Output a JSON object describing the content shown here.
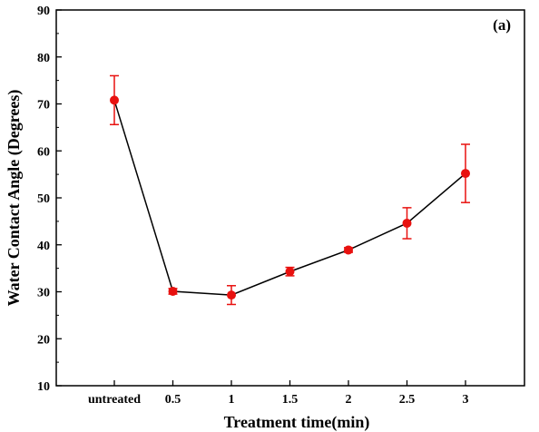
{
  "chart_data": {
    "type": "scatter",
    "panel_label": "(a)",
    "xlabel": "Treatment time(min)",
    "ylabel": "Water Contact Angle (Degrees)",
    "ylim": [
      10,
      90
    ],
    "yticks": [
      10,
      20,
      30,
      40,
      50,
      60,
      70,
      80,
      90
    ],
    "categories": [
      "untreated",
      "0.5",
      "1",
      "1.5",
      "2",
      "2.5",
      "3"
    ],
    "series": [
      {
        "values": [
          70.8,
          30.1,
          29.3,
          34.3,
          38.9,
          44.6,
          55.2
        ],
        "error": [
          5.2,
          0.6,
          2.0,
          0.9,
          0.5,
          3.3,
          6.2
        ],
        "line_color": "#000000",
        "marker_color": "#e8110f"
      }
    ],
    "grid": false
  }
}
